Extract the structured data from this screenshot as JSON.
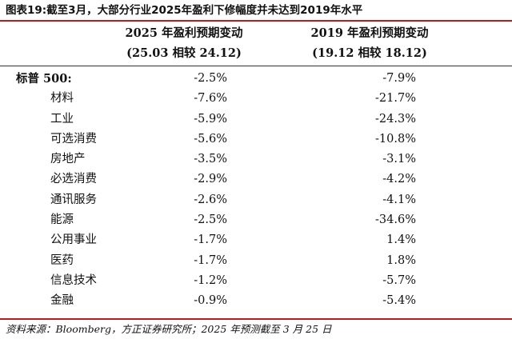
{
  "title": "图表19:截至3月，大部分行业2025年盈利下修幅度并未达到2019年水平",
  "columns": [
    {
      "line1": "2025 年盈利预期变动",
      "line2": "(25.03 相较 24.12)"
    },
    {
      "line1": "2019 年盈利预期变动",
      "line2": "(19.12 相较 18.12)"
    }
  ],
  "rows": [
    {
      "label": "标普 500:",
      "v2025": "-2.5%",
      "v2019": "-7.9%"
    },
    {
      "label": "材料",
      "v2025": "-7.6%",
      "v2019": "-21.7%"
    },
    {
      "label": "工业",
      "v2025": "-5.9%",
      "v2019": "-24.3%"
    },
    {
      "label": "可选消费",
      "v2025": "-5.6%",
      "v2019": "-10.8%"
    },
    {
      "label": "房地产",
      "v2025": "-3.5%",
      "v2019": "-3.1%"
    },
    {
      "label": "必选消费",
      "v2025": "-2.9%",
      "v2019": "-4.2%"
    },
    {
      "label": "通讯服务",
      "v2025": "-2.6%",
      "v2019": "-4.1%"
    },
    {
      "label": "能源",
      "v2025": "-2.5%",
      "v2019": "-34.6%"
    },
    {
      "label": "公用事业",
      "v2025": "-1.7%",
      "v2019": "1.4%"
    },
    {
      "label": "医药",
      "v2025": "-1.7%",
      "v2019": "1.8%"
    },
    {
      "label": "信息技术",
      "v2025": "-1.2%",
      "v2019": "-5.7%"
    },
    {
      "label": "金融",
      "v2025": "-0.9%",
      "v2019": "-5.4%"
    }
  ],
  "source": "资料来源：Bloomberg，方正证券研究所；2025 年预测截至 3 月 25 日",
  "colors": {
    "rule": "#b41e1e",
    "text": "#111111"
  }
}
